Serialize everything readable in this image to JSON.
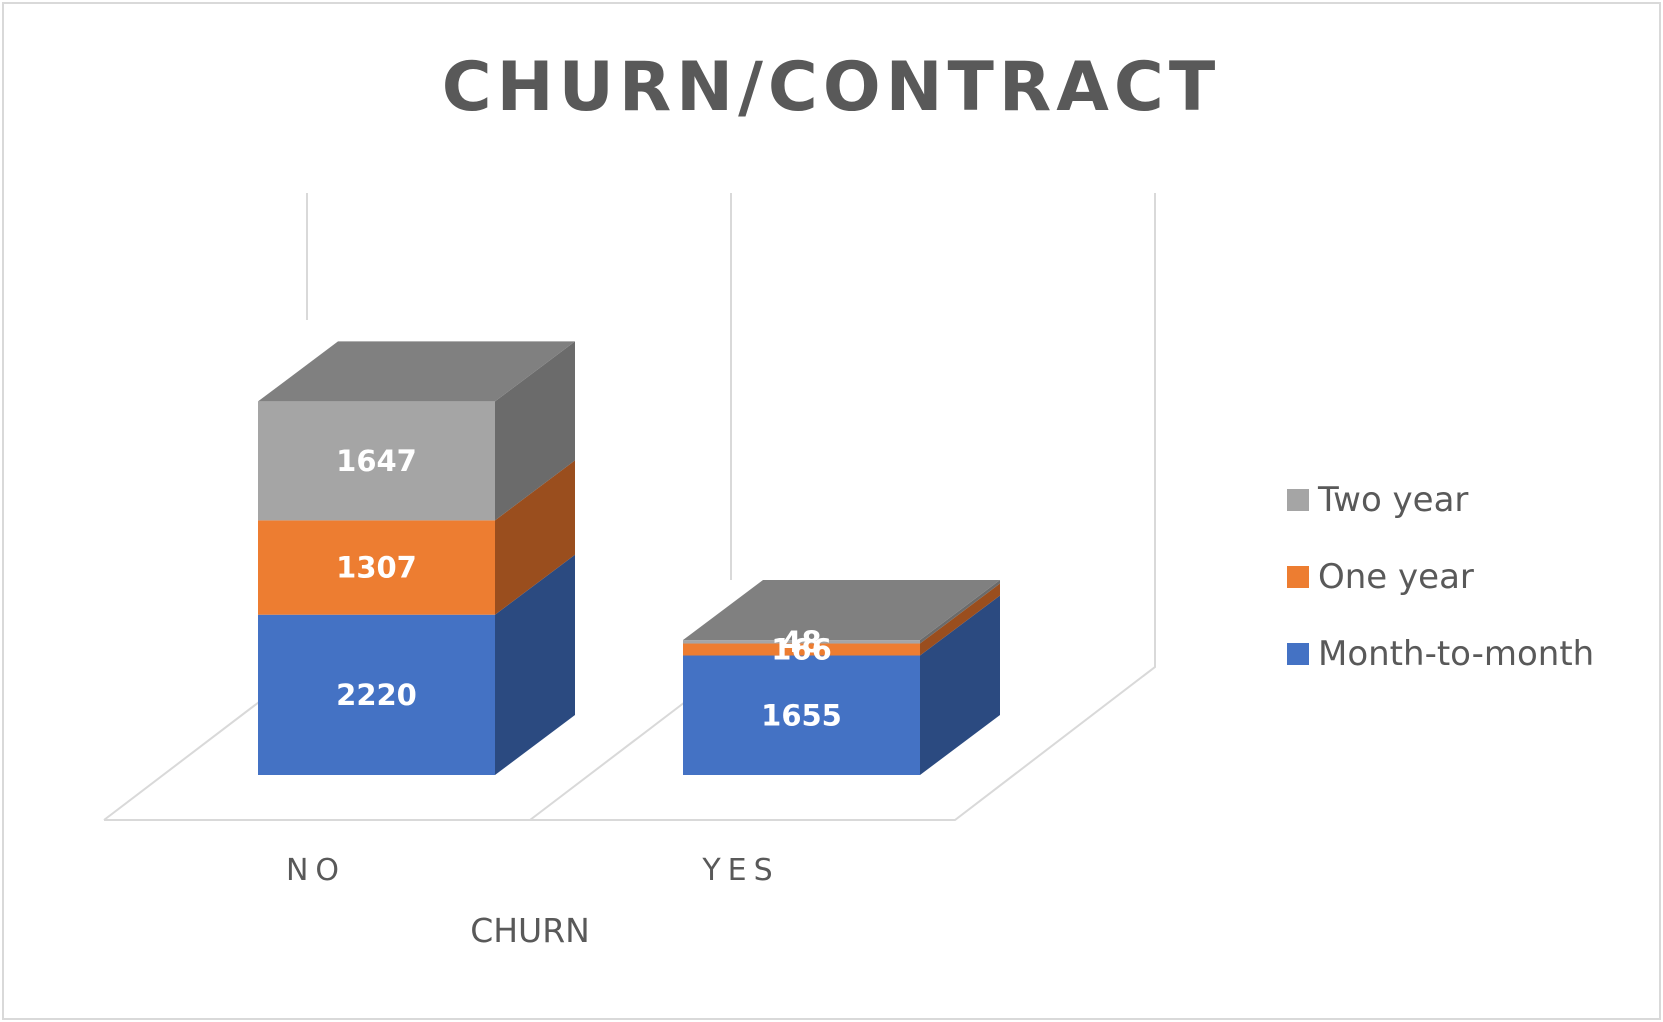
{
  "chart_data": {
    "type": "bar",
    "stacked": true,
    "three_d": true,
    "title": "CHURN/CONTRACT",
    "xlabel": "CHURN",
    "ylabel": "",
    "categories": [
      "NO",
      "YES"
    ],
    "series": [
      {
        "name": "Month-to-month",
        "values": [
          2220,
          1655
        ],
        "color": "#4472C4",
        "side_color": "#2B4A80",
        "top_color": "#3A62A8"
      },
      {
        "name": "One year",
        "values": [
          1307,
          166
        ],
        "color": "#ED7D31",
        "side_color": "#9A4E1E",
        "top_color": "#C96A2A"
      },
      {
        "name": "Two year",
        "values": [
          1647,
          48
        ],
        "color": "#A5A5A5",
        "side_color": "#6B6B6B",
        "top_color": "#808080"
      }
    ],
    "legend": {
      "position": "right",
      "order": [
        "Two year",
        "One year",
        "Month-to-month"
      ]
    },
    "grid": false
  }
}
